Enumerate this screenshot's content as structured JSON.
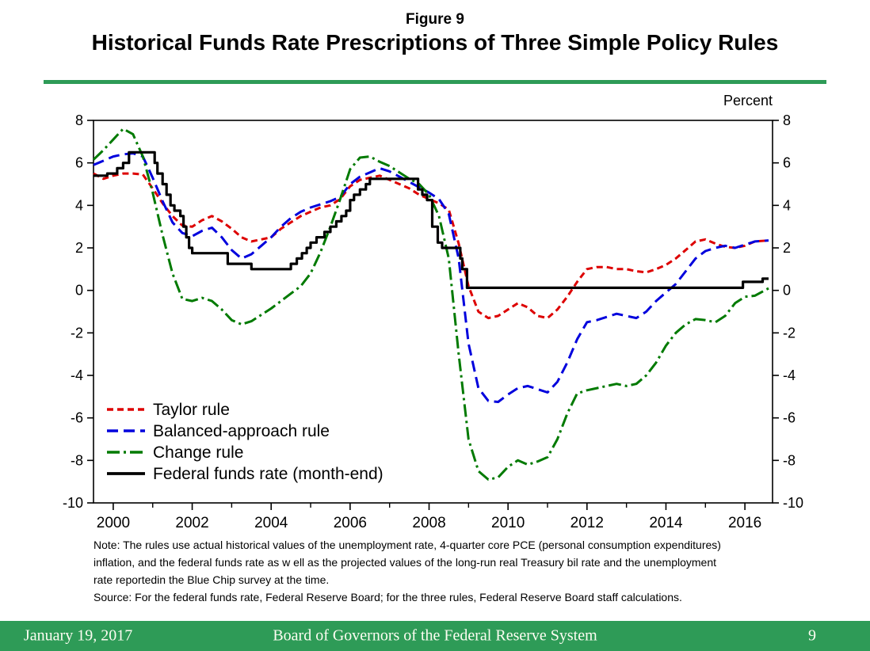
{
  "page": {
    "figure_label": "Figure 9",
    "title": "Historical Funds Rate Prescriptions of Three Simple Policy Rules",
    "unit_label": "Percent",
    "note_lines": [
      "Note: The rules use actual historical values of the unemployment rate, 4-quarter core PCE (personal consumption expenditures)",
      "inflation, and the federal funds rate as w ell as the projected values of the long-run real Treasury bil rate and the unemployment",
      "rate reportedin the Blue Chip survey at the time.",
      "Source: For the federal funds rate, Federal Reserve Board; for the three rules, Federal Reserve Board staff calculations."
    ],
    "footer": {
      "date": "January 19, 2017",
      "center": "Board of Governors of the Federal Reserve System",
      "page_number": "9"
    },
    "colors": {
      "accent_green": "#2E9B57",
      "footer_text": "#FDFDF2"
    }
  },
  "chart_data": {
    "type": "line",
    "title": "Historical Funds Rate Prescriptions of Three Simple Policy Rules",
    "xlabel": "",
    "ylabel": "Percent",
    "xlim": [
      1999.5,
      2016.7
    ],
    "ylim": [
      -10,
      8
    ],
    "grid": false,
    "legend_position": "lower-left",
    "x_major_ticks": [
      2000,
      2002,
      2004,
      2006,
      2008,
      2010,
      2012,
      2014,
      2016
    ],
    "x_minor_ticks": [
      2001,
      2003,
      2005,
      2007,
      2009,
      2011,
      2013,
      2015
    ],
    "y_ticks": [
      -10,
      -8,
      -6,
      -4,
      -2,
      0,
      2,
      4,
      6,
      8
    ],
    "series": [
      {
        "name": "Taylor rule",
        "color": "#DD0000",
        "dash_style": "dashed-short",
        "width": 3,
        "step": false,
        "points": [
          [
            1999.5,
            5.5
          ],
          [
            1999.75,
            5.25
          ],
          [
            2000,
            5.4
          ],
          [
            2000.25,
            5.5
          ],
          [
            2000.5,
            5.5
          ],
          [
            2000.75,
            5.45
          ],
          [
            2001,
            4.8
          ],
          [
            2001.25,
            4.1
          ],
          [
            2001.5,
            3.5
          ],
          [
            2001.75,
            3.05
          ],
          [
            2002,
            3.0
          ],
          [
            2002.25,
            3.3
          ],
          [
            2002.5,
            3.5
          ],
          [
            2002.75,
            3.25
          ],
          [
            2003,
            2.9
          ],
          [
            2003.25,
            2.5
          ],
          [
            2003.5,
            2.3
          ],
          [
            2003.75,
            2.4
          ],
          [
            2004,
            2.5
          ],
          [
            2004.25,
            2.9
          ],
          [
            2004.5,
            3.2
          ],
          [
            2004.75,
            3.5
          ],
          [
            2005,
            3.7
          ],
          [
            2005.25,
            3.9
          ],
          [
            2005.5,
            4.0
          ],
          [
            2005.75,
            4.3
          ],
          [
            2006,
            4.9
          ],
          [
            2006.25,
            5.2
          ],
          [
            2006.5,
            5.3
          ],
          [
            2006.75,
            5.4
          ],
          [
            2007,
            5.2
          ],
          [
            2007.25,
            5.0
          ],
          [
            2007.5,
            4.8
          ],
          [
            2007.75,
            4.5
          ],
          [
            2008,
            4.3
          ],
          [
            2008.25,
            4.1
          ],
          [
            2008.5,
            3.8
          ],
          [
            2008.75,
            2.2
          ],
          [
            2009,
            0.2
          ],
          [
            2009.25,
            -1.0
          ],
          [
            2009.5,
            -1.3
          ],
          [
            2009.75,
            -1.2
          ],
          [
            2010,
            -0.9
          ],
          [
            2010.25,
            -0.6
          ],
          [
            2010.5,
            -0.8
          ],
          [
            2010.75,
            -1.2
          ],
          [
            2011,
            -1.3
          ],
          [
            2011.25,
            -0.9
          ],
          [
            2011.5,
            -0.3
          ],
          [
            2011.75,
            0.4
          ],
          [
            2012,
            1.0
          ],
          [
            2012.25,
            1.1
          ],
          [
            2012.5,
            1.1
          ],
          [
            2012.75,
            1.0
          ],
          [
            2013,
            1.0
          ],
          [
            2013.25,
            0.9
          ],
          [
            2013.5,
            0.85
          ],
          [
            2013.75,
            1.0
          ],
          [
            2014,
            1.2
          ],
          [
            2014.25,
            1.5
          ],
          [
            2014.5,
            1.9
          ],
          [
            2014.75,
            2.3
          ],
          [
            2015,
            2.4
          ],
          [
            2015.25,
            2.2
          ],
          [
            2015.5,
            2.05
          ],
          [
            2015.75,
            2.0
          ],
          [
            2016,
            2.1
          ],
          [
            2016.25,
            2.3
          ],
          [
            2016.6,
            2.35
          ]
        ]
      },
      {
        "name": "Balanced-approach rule",
        "color": "#0000DD",
        "dash_style": "dashed-long",
        "width": 3,
        "step": false,
        "points": [
          [
            1999.5,
            5.9
          ],
          [
            1999.75,
            6.1
          ],
          [
            2000,
            6.3
          ],
          [
            2000.25,
            6.4
          ],
          [
            2000.5,
            6.45
          ],
          [
            2000.75,
            6.3
          ],
          [
            2001,
            5.3
          ],
          [
            2001.25,
            4.2
          ],
          [
            2001.5,
            3.2
          ],
          [
            2001.75,
            2.7
          ],
          [
            2002,
            2.55
          ],
          [
            2002.25,
            2.8
          ],
          [
            2002.5,
            2.95
          ],
          [
            2002.75,
            2.5
          ],
          [
            2003,
            1.9
          ],
          [
            2003.25,
            1.5
          ],
          [
            2003.5,
            1.7
          ],
          [
            2003.75,
            2.1
          ],
          [
            2004,
            2.5
          ],
          [
            2004.25,
            3.0
          ],
          [
            2004.5,
            3.4
          ],
          [
            2004.75,
            3.7
          ],
          [
            2005,
            3.9
          ],
          [
            2005.25,
            4.05
          ],
          [
            2005.5,
            4.2
          ],
          [
            2005.75,
            4.4
          ],
          [
            2006,
            5.0
          ],
          [
            2006.25,
            5.35
          ],
          [
            2006.5,
            5.55
          ],
          [
            2006.75,
            5.75
          ],
          [
            2007,
            5.6
          ],
          [
            2007.25,
            5.35
          ],
          [
            2007.5,
            5.1
          ],
          [
            2007.75,
            4.85
          ],
          [
            2008,
            4.6
          ],
          [
            2008.25,
            4.3
          ],
          [
            2008.5,
            3.6
          ],
          [
            2008.75,
            1.5
          ],
          [
            2009,
            -2.5
          ],
          [
            2009.25,
            -4.6
          ],
          [
            2009.5,
            -5.2
          ],
          [
            2009.75,
            -5.25
          ],
          [
            2010,
            -4.9
          ],
          [
            2010.25,
            -4.6
          ],
          [
            2010.5,
            -4.5
          ],
          [
            2010.75,
            -4.65
          ],
          [
            2011,
            -4.8
          ],
          [
            2011.25,
            -4.3
          ],
          [
            2011.5,
            -3.4
          ],
          [
            2011.75,
            -2.3
          ],
          [
            2012,
            -1.5
          ],
          [
            2012.25,
            -1.4
          ],
          [
            2012.5,
            -1.25
          ],
          [
            2012.75,
            -1.1
          ],
          [
            2013,
            -1.2
          ],
          [
            2013.25,
            -1.3
          ],
          [
            2013.5,
            -1.0
          ],
          [
            2013.75,
            -0.5
          ],
          [
            2014,
            -0.1
          ],
          [
            2014.25,
            0.3
          ],
          [
            2014.5,
            0.9
          ],
          [
            2014.75,
            1.5
          ],
          [
            2015,
            1.85
          ],
          [
            2015.25,
            2.0
          ],
          [
            2015.5,
            2.1
          ],
          [
            2015.75,
            2.0
          ],
          [
            2016,
            2.15
          ],
          [
            2016.25,
            2.3
          ],
          [
            2016.6,
            2.35
          ]
        ]
      },
      {
        "name": "Change rule",
        "color": "#007A00",
        "dash_style": "dash-dot",
        "width": 3,
        "step": false,
        "points": [
          [
            1999.5,
            6.15
          ],
          [
            1999.75,
            6.6
          ],
          [
            2000,
            7.1
          ],
          [
            2000.25,
            7.6
          ],
          [
            2000.5,
            7.35
          ],
          [
            2000.75,
            6.3
          ],
          [
            2001,
            4.6
          ],
          [
            2001.25,
            2.6
          ],
          [
            2001.5,
            0.8
          ],
          [
            2001.75,
            -0.4
          ],
          [
            2002,
            -0.5
          ],
          [
            2002.25,
            -0.35
          ],
          [
            2002.5,
            -0.5
          ],
          [
            2002.75,
            -0.9
          ],
          [
            2003,
            -1.4
          ],
          [
            2003.25,
            -1.6
          ],
          [
            2003.5,
            -1.45
          ],
          [
            2003.75,
            -1.15
          ],
          [
            2004,
            -0.85
          ],
          [
            2004.25,
            -0.5
          ],
          [
            2004.5,
            -0.15
          ],
          [
            2004.75,
            0.2
          ],
          [
            2005,
            0.8
          ],
          [
            2005.25,
            1.8
          ],
          [
            2005.5,
            3.0
          ],
          [
            2005.75,
            4.3
          ],
          [
            2006,
            5.7
          ],
          [
            2006.25,
            6.25
          ],
          [
            2006.5,
            6.3
          ],
          [
            2006.75,
            6.05
          ],
          [
            2007,
            5.85
          ],
          [
            2007.25,
            5.55
          ],
          [
            2007.5,
            5.25
          ],
          [
            2007.75,
            5.0
          ],
          [
            2008,
            4.5
          ],
          [
            2008.25,
            3.5
          ],
          [
            2008.5,
            1.5
          ],
          [
            2008.75,
            -3.0
          ],
          [
            2009,
            -7.0
          ],
          [
            2009.25,
            -8.5
          ],
          [
            2009.5,
            -8.9
          ],
          [
            2009.75,
            -8.8
          ],
          [
            2010,
            -8.3
          ],
          [
            2010.25,
            -8.0
          ],
          [
            2010.5,
            -8.2
          ],
          [
            2010.75,
            -8.05
          ],
          [
            2011,
            -7.85
          ],
          [
            2011.25,
            -7.0
          ],
          [
            2011.5,
            -5.8
          ],
          [
            2011.75,
            -4.85
          ],
          [
            2012,
            -4.7
          ],
          [
            2012.25,
            -4.6
          ],
          [
            2012.5,
            -4.5
          ],
          [
            2012.75,
            -4.4
          ],
          [
            2013,
            -4.5
          ],
          [
            2013.25,
            -4.4
          ],
          [
            2013.5,
            -4.0
          ],
          [
            2013.75,
            -3.4
          ],
          [
            2014,
            -2.6
          ],
          [
            2014.25,
            -2.0
          ],
          [
            2014.5,
            -1.6
          ],
          [
            2014.75,
            -1.35
          ],
          [
            2015,
            -1.4
          ],
          [
            2015.25,
            -1.5
          ],
          [
            2015.5,
            -1.2
          ],
          [
            2015.75,
            -0.6
          ],
          [
            2016,
            -0.3
          ],
          [
            2016.25,
            -0.25
          ],
          [
            2016.6,
            0.1
          ]
        ]
      },
      {
        "name": "Federal funds rate (month-end)",
        "color": "#000000",
        "dash_style": "solid",
        "width": 3.2,
        "step": true,
        "points": [
          [
            1999.5,
            5.4
          ],
          [
            1999.85,
            5.5
          ],
          [
            2000.1,
            5.75
          ],
          [
            2000.25,
            6.0
          ],
          [
            2000.4,
            6.5
          ],
          [
            2001.05,
            6.0
          ],
          [
            2001.12,
            5.5
          ],
          [
            2001.25,
            5.0
          ],
          [
            2001.35,
            4.5
          ],
          [
            2001.45,
            4.0
          ],
          [
            2001.55,
            3.75
          ],
          [
            2001.7,
            3.5
          ],
          [
            2001.78,
            3.0
          ],
          [
            2001.85,
            2.5
          ],
          [
            2001.92,
            2.0
          ],
          [
            2002.0,
            1.75
          ],
          [
            2002.9,
            1.25
          ],
          [
            2003.5,
            1.0
          ],
          [
            2004.5,
            1.25
          ],
          [
            2004.65,
            1.5
          ],
          [
            2004.78,
            1.75
          ],
          [
            2004.9,
            2.0
          ],
          [
            2005.0,
            2.25
          ],
          [
            2005.15,
            2.5
          ],
          [
            2005.35,
            2.75
          ],
          [
            2005.5,
            3.0
          ],
          [
            2005.65,
            3.25
          ],
          [
            2005.78,
            3.5
          ],
          [
            2005.9,
            3.75
          ],
          [
            2006.0,
            4.25
          ],
          [
            2006.1,
            4.5
          ],
          [
            2006.25,
            4.75
          ],
          [
            2006.4,
            5.0
          ],
          [
            2006.5,
            5.25
          ],
          [
            2007.72,
            4.75
          ],
          [
            2007.83,
            4.5
          ],
          [
            2007.95,
            4.25
          ],
          [
            2008.08,
            3.0
          ],
          [
            2008.22,
            2.25
          ],
          [
            2008.33,
            2.0
          ],
          [
            2008.79,
            1.5
          ],
          [
            2008.84,
            1.0
          ],
          [
            2008.96,
            0.12
          ],
          [
            2015.95,
            0.4
          ],
          [
            2016.45,
            0.55
          ],
          [
            2016.6,
            0.55
          ]
        ]
      }
    ]
  }
}
